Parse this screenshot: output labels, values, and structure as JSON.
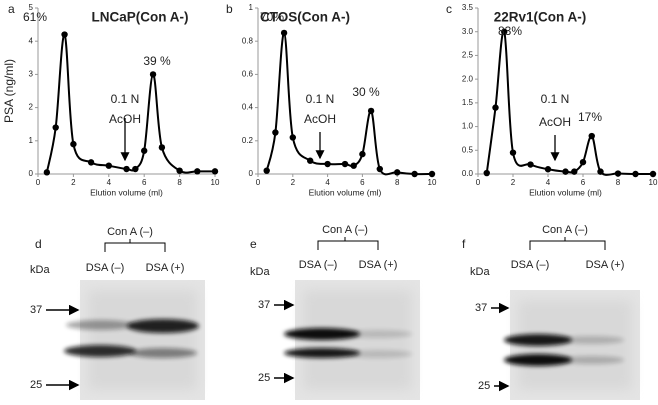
{
  "chart_data": [
    {
      "type": "line",
      "panel": "a",
      "title": "LNCaP(Con A-)",
      "y_label": "PSA (ng/ml)",
      "x_label": "Elution volume (ml)",
      "x": [
        0.5,
        1,
        1.5,
        2,
        3,
        4,
        5,
        5.5,
        6,
        6.5,
        7,
        8,
        9,
        10
      ],
      "series": [
        {
          "color": "#000000",
          "values": [
            0.05,
            1.4,
            4.2,
            0.9,
            0.35,
            0.25,
            0.15,
            0.15,
            0.7,
            3.0,
            0.8,
            0.1,
            0.08,
            0.08
          ]
        }
      ],
      "xlim": [
        0,
        10
      ],
      "xticks": [
        0,
        2,
        4,
        6,
        8,
        10
      ],
      "ylim": [
        0,
        5
      ],
      "yticks": [
        0,
        1,
        2,
        3,
        4,
        5
      ],
      "annotations": [
        "61%",
        "39 %",
        "0.1 N",
        "AcOH"
      ]
    },
    {
      "type": "line",
      "panel": "b",
      "title": "CTOS(Con A-)",
      "x_label": "Elution volume (ml)",
      "x": [
        0.5,
        1,
        1.5,
        2,
        3,
        4,
        5,
        5.5,
        6,
        6.5,
        7,
        8,
        9,
        10
      ],
      "series": [
        {
          "color": "#000000",
          "values": [
            0.02,
            0.25,
            0.85,
            0.22,
            0.08,
            0.06,
            0.06,
            0.05,
            0.12,
            0.38,
            0.03,
            0.01,
            0,
            0
          ]
        }
      ],
      "xlim": [
        0,
        10
      ],
      "xticks": [
        0,
        2,
        4,
        6,
        8,
        10
      ],
      "ylim": [
        0,
        1
      ],
      "yticks": [
        0,
        0.2,
        0.4,
        0.6,
        0.8,
        1
      ],
      "annotations": [
        "70%",
        "30 %",
        "0.1 N",
        "AcOH"
      ]
    },
    {
      "type": "line",
      "panel": "c",
      "title": "22Rv1(Con A-)",
      "x_label": "Elution volume (ml)",
      "x": [
        0.5,
        1,
        1.5,
        2,
        3,
        4,
        5,
        5.5,
        6,
        6.5,
        7,
        8,
        9,
        10
      ],
      "series": [
        {
          "color": "#000000",
          "values": [
            0.02,
            1.4,
            3.0,
            0.45,
            0.2,
            0.1,
            0.05,
            0.05,
            0.25,
            0.8,
            0.05,
            0.01,
            0,
            0
          ]
        }
      ],
      "xlim": [
        0,
        10
      ],
      "xticks": [
        0,
        2,
        4,
        6,
        8,
        10
      ],
      "ylim": [
        0,
        3.5
      ],
      "yticks": [
        {
          "value": 0,
          "label": "0.0"
        },
        0.5,
        {
          "value": 1,
          "label": "1.0"
        },
        1.5,
        {
          "value": 2,
          "label": "2.0"
        },
        2.5,
        {
          "value": 3,
          "label": "3.0"
        },
        3.5
      ],
      "annotations": [
        "83%",
        "17%",
        "0.1 N",
        "AcOH"
      ]
    }
  ],
  "blots": [
    {
      "panel": "d",
      "header": "Con A (–)",
      "lanes": [
        "DSA (–)",
        "DSA (+)"
      ],
      "unit": "kDa",
      "markers": [
        "37",
        "25"
      ]
    },
    {
      "panel": "e",
      "header": "Con A (–)",
      "lanes": [
        "DSA (–)",
        "DSA (+)"
      ],
      "unit": "kDa",
      "markers": [
        "37",
        "25"
      ]
    },
    {
      "panel": "f",
      "header": "Con A (–)",
      "lanes": [
        "DSA (–)",
        "DSA (+)"
      ],
      "unit": "kDa",
      "markers": [
        "37",
        "25"
      ]
    }
  ]
}
